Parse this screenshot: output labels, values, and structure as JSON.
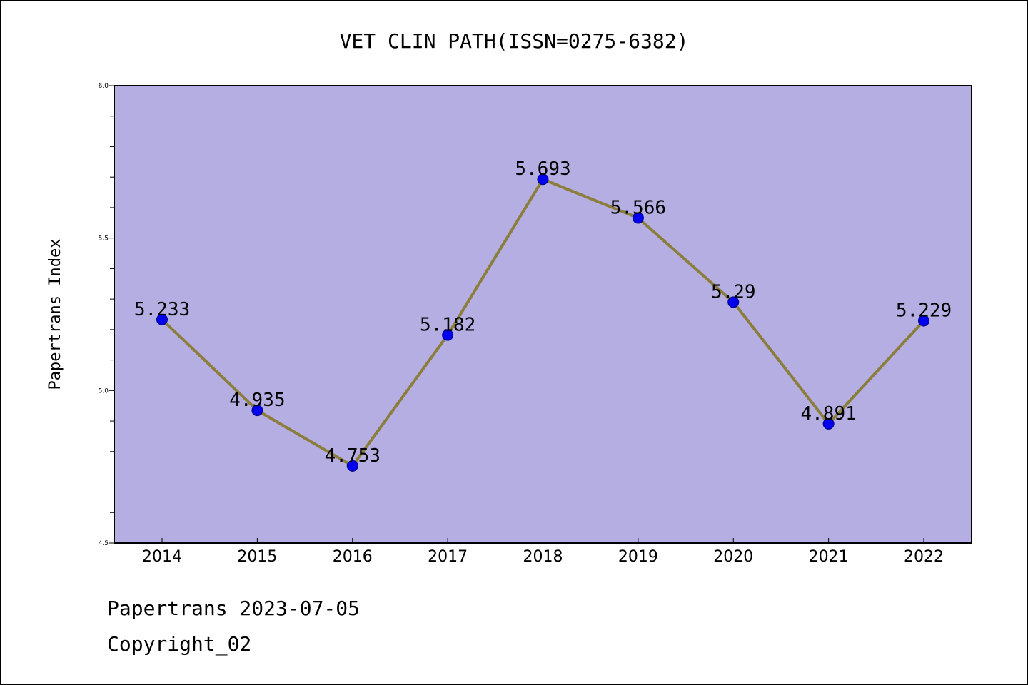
{
  "chart_data": {
    "type": "line",
    "title": "VET CLIN PATH(ISSN=0275-6382)",
    "ylabel": "Papertrans Index",
    "xlabel": "",
    "categories": [
      "2014",
      "2015",
      "2016",
      "2017",
      "2018",
      "2019",
      "2020",
      "2021",
      "2022"
    ],
    "series": [
      {
        "values": [
          5.233,
          4.935,
          4.753,
          5.182,
          5.693,
          5.566,
          5.29,
          4.891,
          5.229
        ],
        "data_labels": [
          "5.233",
          "4.935",
          "4.753",
          "5.182",
          "5.693",
          "5.566",
          "5.29",
          "4.891",
          "5.229"
        ]
      }
    ],
    "ylim": [
      4.5,
      6.0
    ],
    "y_major_ticks": [
      "4.5",
      "5.0",
      "5.5",
      "6.0"
    ],
    "y_minor_step": 0.1,
    "grid": false,
    "legend": "none",
    "colors": {
      "plot_background": "#b5aee2",
      "line": "#8b7d3c",
      "marker": "#0000ee",
      "marker_edge": "#000080",
      "axis": "#000000"
    }
  },
  "footer": {
    "source": "Papertrans 2023-07-05",
    "copyright": "Copyright_02"
  }
}
